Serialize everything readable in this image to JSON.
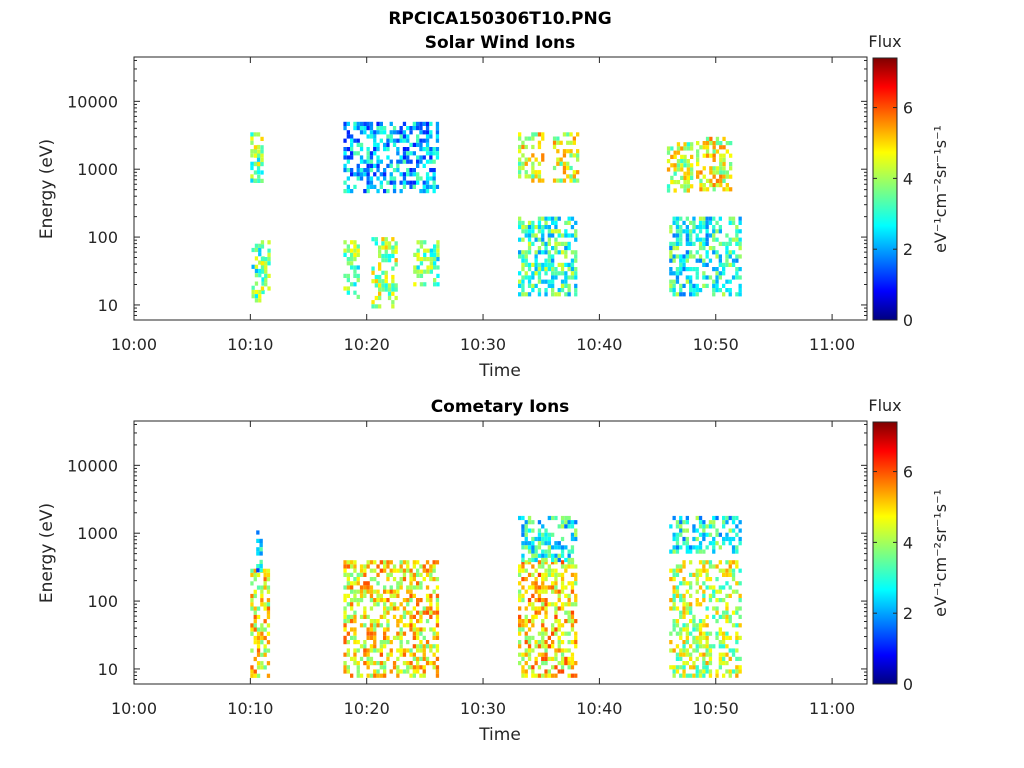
{
  "figure_title": "RPCICA150306T10.PNG",
  "chart_data": [
    {
      "type": "heatmap",
      "title": "Solar Wind Ions",
      "xlabel": "Time",
      "ylabel": "Energy (eV)",
      "x_scale": "time",
      "y_scale": "log",
      "xlim": [
        "10:00",
        "11:03"
      ],
      "ylim": [
        6,
        45000
      ],
      "x_ticks": [
        "10:00",
        "10:10",
        "10:20",
        "10:30",
        "10:40",
        "10:50",
        "11:00"
      ],
      "y_ticks": [
        10,
        100,
        1000,
        10000
      ],
      "y_tick_labels": [
        "10",
        "100",
        "1000",
        "10000"
      ],
      "colorbar": {
        "title": "Flux",
        "label": "eV⁻¹cm⁻²sr⁻¹s⁻¹",
        "range": [
          0,
          7.4
        ],
        "ticks": [
          "0",
          "2",
          "4",
          "6"
        ],
        "colormap": "jet"
      },
      "clusters": [
        {
          "t": [
            10.0,
            10.8
          ],
          "e": [
            700,
            3500
          ],
          "f": 3.4
        },
        {
          "t": [
            10.1,
            11.0
          ],
          "e": [
            12,
            80
          ],
          "f": 3.4
        },
        {
          "t": [
            10.3,
            10.9
          ],
          "e": [
            600,
            3000
          ],
          "f": 3.8
        },
        {
          "t": [
            10.9,
            11.5
          ],
          "e": [
            18,
            90
          ],
          "f": 3.7
        },
        {
          "t": [
            18.0,
            19.4
          ],
          "e": [
            14,
            90
          ],
          "f": 3.5
        },
        {
          "t": [
            20.4,
            22.5
          ],
          "e": [
            10,
            100
          ],
          "f": 4.0
        },
        {
          "t": [
            24.0,
            26.0
          ],
          "e": [
            20,
            90
          ],
          "f": 3.4
        },
        {
          "t": [
            18.0,
            26.0
          ],
          "e": [
            500,
            5000
          ],
          "f": 2.3
        },
        {
          "t": [
            33.0,
            35.0
          ],
          "e": [
            700,
            3500
          ],
          "f": 4.4
        },
        {
          "t": [
            36.0,
            38.0
          ],
          "e": [
            700,
            3500
          ],
          "f": 4.4
        },
        {
          "t": [
            33.0,
            38.0
          ],
          "e": [
            15,
            200
          ],
          "f": 3.2
        },
        {
          "t": [
            45.8,
            48.0
          ],
          "e": [
            500,
            2500
          ],
          "f": 4.2
        },
        {
          "t": [
            48.3,
            51.3
          ],
          "e": [
            500,
            3000
          ],
          "f": 4.5
        },
        {
          "t": [
            46.0,
            52.0
          ],
          "e": [
            15,
            200
          ],
          "f": 3.0
        }
      ]
    },
    {
      "type": "heatmap",
      "title": "Cometary Ions",
      "xlabel": "Time",
      "ylabel": "Energy (eV)",
      "x_scale": "time",
      "y_scale": "log",
      "xlim": [
        "10:00",
        "11:03"
      ],
      "ylim": [
        6,
        45000
      ],
      "x_ticks": [
        "10:00",
        "10:10",
        "10:20",
        "10:30",
        "10:40",
        "10:50",
        "11:00"
      ],
      "y_ticks": [
        10,
        100,
        1000,
        10000
      ],
      "y_tick_labels": [
        "10",
        "100",
        "1000",
        "10000"
      ],
      "colorbar": {
        "title": "Flux",
        "label": "eV⁻¹cm⁻²sr⁻¹s⁻¹",
        "range": [
          0,
          7.4
        ],
        "ticks": [
          "0",
          "2",
          "4",
          "6"
        ],
        "colormap": "jet"
      },
      "clusters": [
        {
          "t": [
            10.0,
            11.5
          ],
          "e": [
            8,
            300
          ],
          "f": 4.6
        },
        {
          "t": [
            10.5,
            11.0
          ],
          "e": [
            300,
            1100
          ],
          "f": 2.5
        },
        {
          "t": [
            18.0,
            26.0
          ],
          "e": [
            8,
            400
          ],
          "f": 4.7
        },
        {
          "t": [
            33.0,
            38.0
          ],
          "e": [
            8,
            400
          ],
          "f": 4.8
        },
        {
          "t": [
            33.0,
            38.0
          ],
          "e": [
            400,
            1800
          ],
          "f": 2.9
        },
        {
          "t": [
            46.0,
            52.0
          ],
          "e": [
            8,
            400
          ],
          "f": 4.2
        },
        {
          "t": [
            46.0,
            52.0
          ],
          "e": [
            500,
            1800
          ],
          "f": 2.9
        }
      ]
    }
  ]
}
